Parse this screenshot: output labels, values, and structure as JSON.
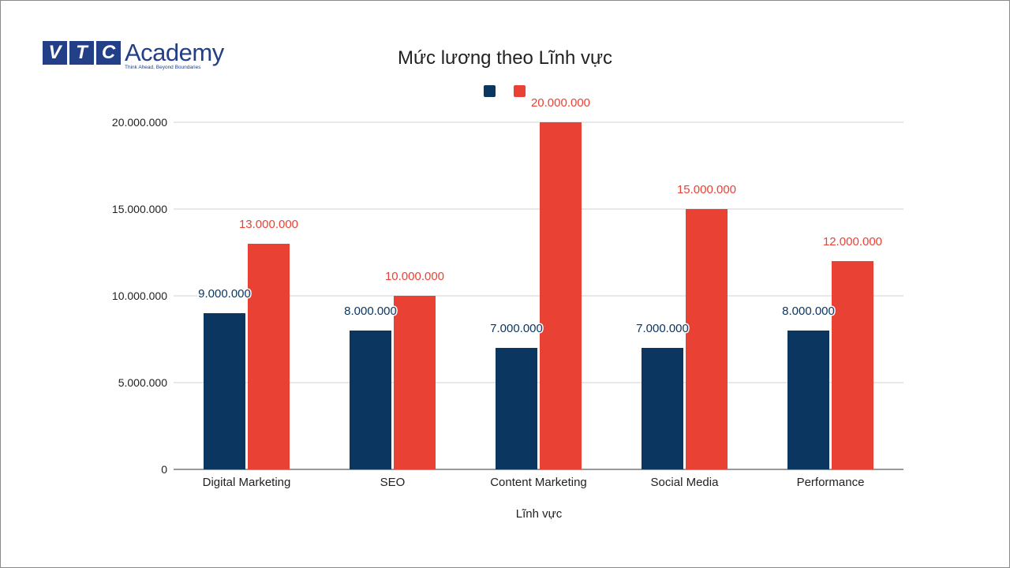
{
  "logo": {
    "letters": [
      "V",
      "T",
      "C"
    ],
    "word": "Academy",
    "tagline": "Think Ahead, Beyond Boundaries"
  },
  "colors": {
    "series1": "#0b3660",
    "series2": "#e94235",
    "grid": "#d0d0d0",
    "axis": "#333333"
  },
  "chart_data": {
    "type": "bar",
    "title": "Mức lương theo Lĩnh vực",
    "xlabel": "Lĩnh vực",
    "ylabel": "",
    "categories": [
      "Digital Marketing",
      "SEO",
      "Content Marketing",
      "Social Media",
      "Performance"
    ],
    "series": [
      {
        "values": [
          9000000,
          8000000,
          7000000,
          7000000,
          8000000
        ],
        "labels": [
          "9.000.000",
          "8.000.000",
          "7.000.000",
          "7.000.000",
          "8.000.000"
        ]
      },
      {
        "values": [
          13000000,
          10000000,
          20000000,
          15000000,
          12000000
        ],
        "labels": [
          "13.000.000",
          "10.000.000",
          "20.000.000",
          "15.000.000",
          "12.000.000"
        ]
      }
    ],
    "ylim": [
      0,
      20000000
    ],
    "yticks": [
      0,
      5000000,
      10000000,
      15000000,
      20000000
    ],
    "ytick_labels": [
      "0",
      "5.000.000",
      "10.000.000",
      "15.000.000",
      "20.000.000"
    ],
    "grid": true,
    "legend": "top-center"
  }
}
